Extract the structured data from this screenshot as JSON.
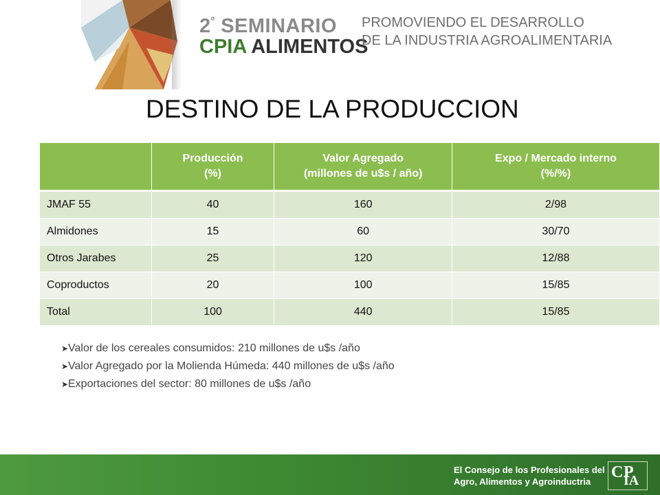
{
  "header": {
    "seminar_number": "2",
    "seminar_number_sup": "º",
    "seminar_word": "SEMINARIO",
    "org_word": "CPIA",
    "food_word": "ALIMENTOS",
    "slogan_line1": "PROMOVIENDO EL DESARROLLO",
    "slogan_line2": "DE LA INDUSTRIA AGROALIMENTARIA"
  },
  "title": "DESTINO DE LA PRODUCCION",
  "table": {
    "headers": [
      {
        "line1": "",
        "line2": ""
      },
      {
        "line1": "Producción",
        "line2": "(%)"
      },
      {
        "line1": "Valor Agregado",
        "line2": "(millones de u$s / año)"
      },
      {
        "line1": "Expo / Mercado interno",
        "line2": "(%/%)"
      }
    ],
    "rows": [
      [
        "JMAF 55",
        "40",
        "160",
        "2/98"
      ],
      [
        "Almidones",
        "15",
        "60",
        "30/70"
      ],
      [
        "Otros Jarabes",
        "25",
        "120",
        "12/88"
      ],
      [
        "Coproductos",
        "20",
        "100",
        "15/85"
      ],
      [
        "Total",
        "100",
        "440",
        "15/85"
      ]
    ]
  },
  "bullets": [
    "Valor de los cereales consumidos: 210 millones de u$s /año",
    "Valor Agregado por la Molienda Húmeda: 440 millones de u$s /año",
    "Exportaciones del sector: 80 millones de u$s /año"
  ],
  "footer": {
    "line1": "El Consejo de los Profesionales del",
    "line2": "Agro, Alimentos y Agroinductria",
    "logo_c": "C",
    "logo_p": "P",
    "logo_ia": "IA"
  },
  "colors": {
    "header_green": "#8cbd4f",
    "row_dark": "#dde8d1",
    "row_light": "#eef3e9",
    "footer_green": "#3e8a33",
    "brand_green": "#3e7c2f"
  }
}
